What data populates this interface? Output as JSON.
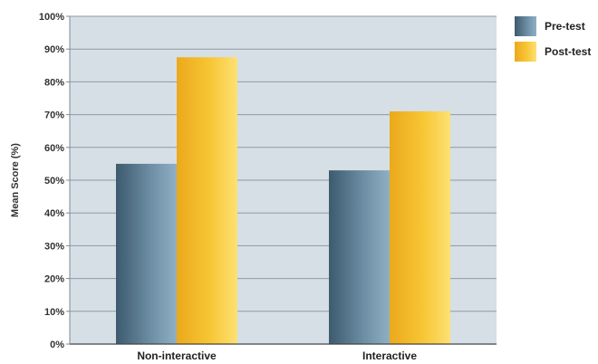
{
  "chart_data": {
    "type": "bar",
    "ylabel": "Mean Score (%)",
    "xlabel": "",
    "categories": [
      "Non-interactive",
      "Interactive"
    ],
    "series": [
      {
        "name": "Pre-test",
        "values": [
          55,
          53
        ],
        "color": "#5a7a90"
      },
      {
        "name": "Post-test",
        "values": [
          87.5,
          71
        ],
        "color": "#f5c232"
      }
    ],
    "ylim": [
      0,
      100
    ],
    "y_ticks": [
      "0%",
      "10%",
      "20%",
      "30%",
      "40%",
      "50%",
      "60%",
      "70%",
      "80%",
      "90%",
      "100%"
    ],
    "grid": true,
    "legend_position": "top-right",
    "plot_background": "#d6dfe6"
  }
}
